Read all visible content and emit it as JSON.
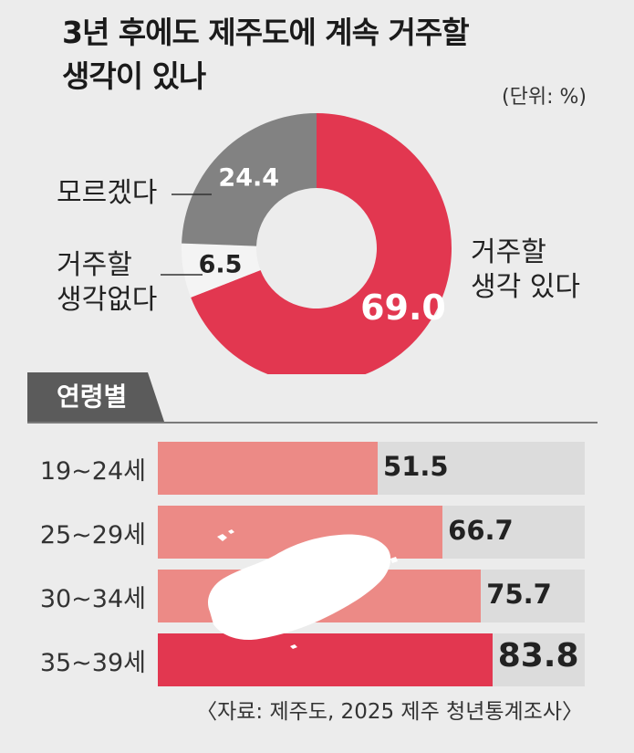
{
  "header": {
    "title_line1": "3년 후에도 제주도에 계속 거주할",
    "title_line2": "생각이 있나",
    "unit": "(단위: %)"
  },
  "section_tag": "연령별",
  "source": "〈자료: 제주도, 2025 제주 청년통계조사〉",
  "colors": {
    "yes": "#e23750",
    "no": "#f4f4f4",
    "unknown": "#828282",
    "bar": "#ec8a86",
    "bar_highlight": "#e23750",
    "track": "#dcdcdc"
  },
  "chart_data": [
    {
      "type": "pie",
      "donut": true,
      "slices": [
        {
          "label": "거주할 생각 있다",
          "value": 69.0,
          "display": "69.0"
        },
        {
          "label": "거주할 생각없다",
          "value": 6.5,
          "display": "6.5"
        },
        {
          "label": "모르겠다",
          "value": 24.4,
          "display": "24.4"
        }
      ],
      "unit": "%"
    },
    {
      "type": "bar",
      "orientation": "horizontal",
      "title": "연령별",
      "categories": [
        "19~24세",
        "25~29세",
        "30~34세",
        "35~39세"
      ],
      "values": [
        51.5,
        66.7,
        75.7,
        83.8
      ],
      "xlim": [
        0,
        100
      ],
      "highlight": "35~39세"
    }
  ],
  "labels": {
    "yes_line1": "거주할",
    "yes_line2": "생각 있다",
    "no_line1": "거주할",
    "no_line2": "생각없다",
    "unknown": "모르겠다"
  }
}
